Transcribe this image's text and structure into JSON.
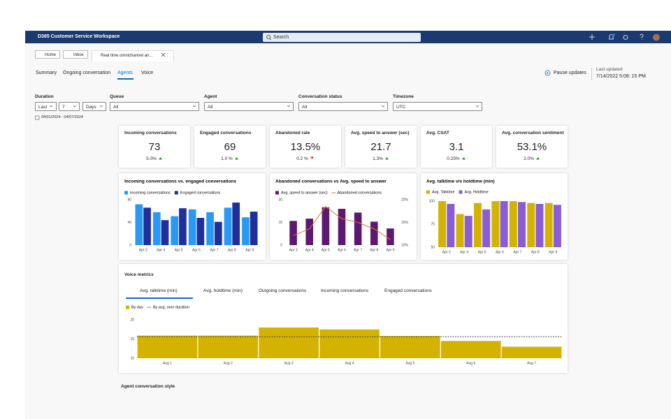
{
  "header": {
    "app_title": "D365 Customer Service Workspace",
    "search": "Search"
  },
  "session_tabs": [
    "Home",
    "Inbox",
    "Real time omnichannel an..."
  ],
  "nav": {
    "items": [
      "Summary",
      "Ongoing conversation",
      "Agents",
      "Voice"
    ],
    "active": 2
  },
  "status": {
    "pause": "Pause updates",
    "last_updated_label": "Last updated",
    "last_updated": "7/14/2022 5:08: 15 PM"
  },
  "filters": {
    "duration": {
      "label": "Duration",
      "mode": "Last",
      "count": "7",
      "unit": "Days"
    },
    "queue": {
      "label": "Queue",
      "value": "All"
    },
    "agent": {
      "label": "Agent",
      "value": "All"
    },
    "conversation_status": {
      "label": "Conversation status",
      "value": "All"
    },
    "timezone": {
      "label": "Timezone",
      "value": "UTC"
    },
    "date_range": "04/01/2024 - 04/07/2024"
  },
  "kpis": [
    {
      "title": "Incoming conversations",
      "value": "73",
      "change": "5.0%",
      "direction": "up"
    },
    {
      "title": "Engaged conversations",
      "value": "69",
      "change": "1.0 %",
      "direction": "up"
    },
    {
      "title": "Abandoned rate",
      "value": "13.5%",
      "change": "0.2 %",
      "direction": "down"
    },
    {
      "title": "Avg. speed to answer (sec)",
      "value": "21.7",
      "change": "1.3%",
      "direction": "up"
    },
    {
      "title": "Avg. CSAT",
      "value": "3.1",
      "change": "0.25%",
      "direction": "up"
    },
    {
      "title": "Avg. conversation sentiment",
      "value": "53.1%",
      "change": "2.0%",
      "direction": "up"
    }
  ],
  "voice_metrics": {
    "title": "Voice metrics",
    "tabs": [
      "Avg. talktime (min)",
      "Avg. holdtime (min)",
      "Outgoing conversations",
      "Incoming conversations",
      "Engaged conversations"
    ],
    "active": 0
  },
  "next_section": "Agent conversation style",
  "chart_data": [
    {
      "type": "bar",
      "title": "Incoming conversations  vs. engaged conversations",
      "categories": [
        "Apr 3",
        "Apr 4",
        "Apr 5",
        "Apr 6",
        "Apr 7",
        "Apr 8",
        "Apr 9"
      ],
      "series": [
        {
          "name": "Incoming conversations",
          "color": "#2899f5",
          "values": [
            72,
            58,
            51,
            63,
            58,
            66,
            49
          ]
        },
        {
          "name": "Engaged conversations",
          "color": "#1f2f9c",
          "values": [
            66,
            44,
            65,
            48,
            41,
            75,
            59
          ]
        }
      ],
      "ylim": [
        0,
        80
      ],
      "yticks": [
        0,
        40,
        80
      ],
      "grid": false
    },
    {
      "type": "bar",
      "title": "Abandoned conversations vs Avg. speed to answer",
      "categories": [
        "Apr 3",
        "Apr 4",
        "Apr 5",
        "Apr 6",
        "Apr 7",
        "Apr 8",
        "Apr 9"
      ],
      "series": [
        {
          "name": "Avg. speed to answer (sec)",
          "color": "#5c1a6e",
          "values": [
            16,
            17.5,
            25,
            24,
            21.5,
            15.5,
            11
          ]
        },
        {
          "name": "Abandoned conversations",
          "color": "#e8742a",
          "type": "line",
          "axis": "y2",
          "values": [
            12.1,
            13.6,
            18.5,
            15.8,
            15,
            13.6,
            11.2
          ]
        }
      ],
      "ylim": [
        0,
        30
      ],
      "yticks": [
        0,
        15,
        30
      ],
      "y2lim": [
        10,
        20
      ],
      "y2ticks": [
        {
          "value": 10,
          "label": "10%"
        },
        {
          "value": 15,
          "label": "15%"
        },
        {
          "value": 20,
          "label": "20%"
        }
      ],
      "grid": false
    },
    {
      "type": "bar",
      "title": "Avg. talktime v/s holdtime (min)",
      "categories": [
        "Apr 3",
        "Apr 4",
        "Apr 5",
        "Apr 6",
        "Apr 7",
        "Apr 8",
        "Apr 9"
      ],
      "series": [
        {
          "name": "Avg. Talktime",
          "color": "#d4b300",
          "values": [
            100,
            86,
            98,
            100,
            100,
            98,
            98
          ]
        },
        {
          "name": "Avg. Holdtime",
          "color": "#8a5cd6",
          "values": [
            97,
            84,
            91,
            100,
            99,
            97,
            96
          ]
        }
      ],
      "ylim": [
        50,
        100
      ],
      "yticks": [
        50,
        75,
        100
      ],
      "grid": false
    },
    {
      "type": "bar",
      "categories": [
        "Aug 1",
        "Aug 2",
        "Aug 3",
        "Aug 4",
        "Aug 5",
        "Aug 6",
        "Aug 7"
      ],
      "series": [
        {
          "name": "By day",
          "color": "#d4b300",
          "values": [
            15.9,
            15.9,
            18,
            17.5,
            15.8,
            14.5,
            13
          ]
        }
      ],
      "average_line": {
        "name": "By avg. over duration",
        "value": 15.6,
        "color": "#333333"
      },
      "ylim": [
        10,
        20
      ],
      "yticks": [
        10,
        15,
        20
      ],
      "grid": false
    }
  ]
}
